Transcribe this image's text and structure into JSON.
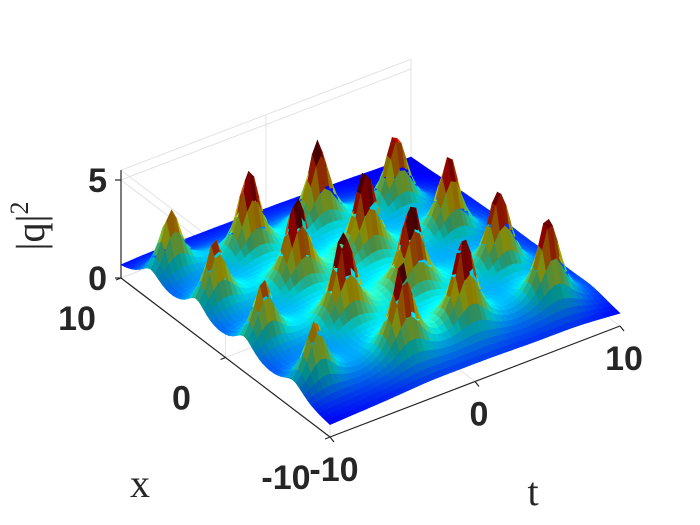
{
  "chart_data": {
    "type": "surface",
    "title": "",
    "xlabel": "t",
    "ylabel": "x",
    "zlabel": "|q|",
    "zlabel_superscript": "2",
    "t_range": [
      -10,
      10
    ],
    "x_range": [
      -10,
      10
    ],
    "z_range": [
      0,
      5
    ],
    "t_ticks": [
      {
        "value": -10,
        "label": "-10"
      },
      {
        "value": 0,
        "label": "0"
      },
      {
        "value": 10,
        "label": "10"
      }
    ],
    "x_ticks": [
      {
        "value": -10,
        "label": "-10"
      },
      {
        "value": 0,
        "label": "0"
      },
      {
        "value": 10,
        "label": "10"
      }
    ],
    "z_ticks": [
      {
        "value": 0,
        "label": "0"
      },
      {
        "value": 5,
        "label": "5"
      }
    ],
    "colormap": "jet",
    "background_level": 0.3,
    "grid": true,
    "surface_description": "periodic lattice of localized peaks in |q|^2 over (t, x)",
    "peaks": [
      {
        "t": -8.5,
        "x": -6.5,
        "z": 3.6
      },
      {
        "t": -8.7,
        "x": -1.8,
        "z": 3.7
      },
      {
        "t": -8.7,
        "x": 2.8,
        "z": 3.9
      },
      {
        "t": -8.6,
        "x": 7.2,
        "z": 3.8
      },
      {
        "t": -3.0,
        "x": -7.2,
        "z": 5.2
      },
      {
        "t": -4.0,
        "x": -3.0,
        "z": 5.3
      },
      {
        "t": -4.0,
        "x": 1.5,
        "z": 5.2
      },
      {
        "t": -4.2,
        "x": 5.8,
        "z": 5.0
      },
      {
        "t": 1.4,
        "x": -7.0,
        "z": 5.2
      },
      {
        "t": 0.8,
        "x": -2.8,
        "z": 5.3
      },
      {
        "t": 0.8,
        "x": 1.6,
        "z": 5.2
      },
      {
        "t": 0.7,
        "x": 6.0,
        "z": 5.0
      },
      {
        "t": 7.0,
        "x": -7.3,
        "z": 5.0
      },
      {
        "t": 6.4,
        "x": -3.4,
        "z": 4.8
      },
      {
        "t": 6.2,
        "x": 1.1,
        "z": 4.7
      },
      {
        "t": 5.5,
        "x": 5.2,
        "z": 4.5
      }
    ]
  }
}
